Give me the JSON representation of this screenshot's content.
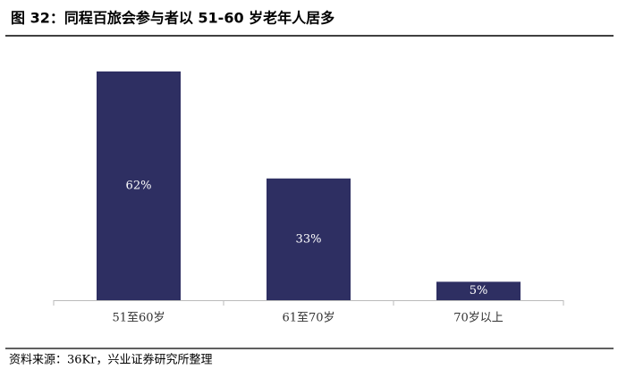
{
  "chart_data": {
    "type": "bar",
    "title": "图 32：同程百旅会参与者以 51-60 岁老年人居多",
    "source": "资料来源：36Kr，兴业证券研究所整理",
    "categories": [
      "51至60岁",
      "61至70岁",
      "70岁以上"
    ],
    "values": [
      62,
      33,
      5
    ],
    "value_labels": [
      "62%",
      "33%",
      "5%"
    ],
    "color": "#2e2f62"
  }
}
